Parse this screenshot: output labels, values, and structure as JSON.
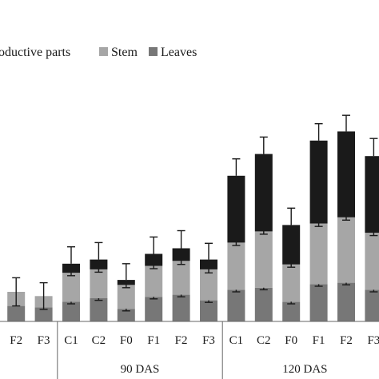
{
  "chart_data": {
    "type": "bar",
    "stacked": true,
    "legend": {
      "placement": "top",
      "entries": [
        {
          "label": "oductive parts",
          "color": "#1a1a1a"
        },
        {
          "label": "Stem",
          "color": "#a6a6a6"
        },
        {
          "label": "Leaves",
          "color": "#777777"
        }
      ]
    },
    "categories": [
      "F2",
      "F3",
      "C1",
      "C2",
      "F0",
      "F1",
      "F2",
      "F3",
      "C1",
      "C2",
      "F0",
      "F1",
      "F2",
      "F3"
    ],
    "groups": [
      {
        "label": "",
        "start": 0,
        "end": 1
      },
      {
        "label": "90 DAS",
        "start": 2,
        "end": 7
      },
      {
        "label": "120 DAS",
        "start": 8,
        "end": 13
      }
    ],
    "series": [
      {
        "name": "Leaves",
        "color": "#777777",
        "values": [
          22,
          20,
          28,
          33,
          18,
          35,
          38,
          30,
          45,
          48,
          28,
          53,
          55,
          45
        ]
      },
      {
        "name": "Stem",
        "color": "#a6a6a6",
        "values": [
          20,
          16,
          41,
          41,
          34,
          44,
          48,
          44,
          67,
          80,
          53,
          86,
          93,
          81
        ]
      },
      {
        "name": "oductive parts",
        "color": "#1a1a1a",
        "values": [
          0,
          0,
          13,
          14,
          7,
          17,
          18,
          14,
          95,
          110,
          56,
          118,
          122,
          109
        ]
      }
    ],
    "errors": {
      "Leaves": [
        0,
        0,
        3,
        3,
        3,
        3,
        3,
        3,
        3,
        3,
        3,
        3,
        3,
        3
      ],
      "Stem": [
        20,
        19,
        4,
        4,
        4,
        4,
        5,
        5,
        4,
        4,
        4,
        4,
        4,
        4
      ],
      "oductive parts": [
        0,
        0,
        24,
        24,
        23,
        24,
        25,
        23,
        24,
        24,
        24,
        24,
        23,
        25
      ]
    },
    "ylim": [
      0,
      300
    ],
    "grid": false
  }
}
